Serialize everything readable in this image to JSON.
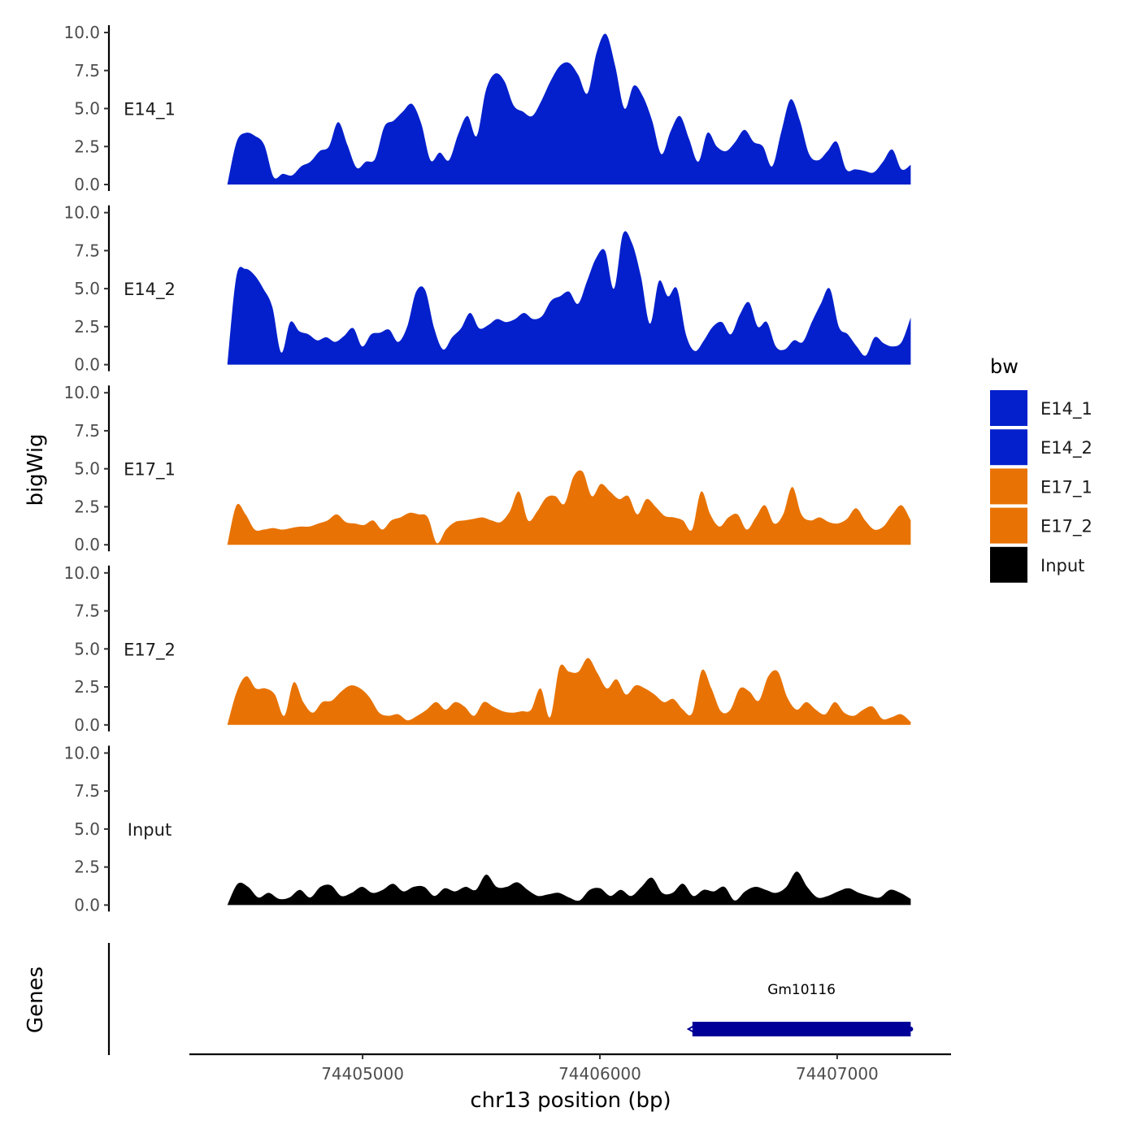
{
  "chart_data": {
    "type": "area",
    "chromosome_axis_label": "chr13 position (bp)",
    "ylabel": "bigWig",
    "genes_label": "Genes",
    "xlim": [
      74404270,
      74407480
    ],
    "x_start": 74404430,
    "x_end": 74407310,
    "x_ticks": [
      74405000,
      74406000,
      74407000
    ],
    "x_tick_labels": [
      "74405000",
      "74406000",
      "74407000"
    ],
    "ylim": [
      0,
      10
    ],
    "y_ticks": [
      0,
      2.5,
      5,
      7.5,
      10
    ],
    "y_tick_labels": [
      "0.0",
      "2.5",
      "5.0",
      "7.5",
      "10.0"
    ],
    "legend": {
      "title": "bw",
      "entries": [
        {
          "label": "E14_1",
          "color": "#0320CC"
        },
        {
          "label": "E14_2",
          "color": "#0320CC"
        },
        {
          "label": "E17_1",
          "color": "#E87304"
        },
        {
          "label": "E17_2",
          "color": "#E87304"
        },
        {
          "label": "Input",
          "color": "#000000"
        }
      ]
    },
    "tracks": [
      {
        "name": "E14_1",
        "color": "#0320CC",
        "values": [
          0.0,
          2.8,
          3.4,
          3.2,
          2.6,
          0.5,
          0.7,
          0.6,
          1.2,
          1.5,
          2.2,
          2.5,
          4.1,
          2.6,
          1.1,
          1.5,
          1.7,
          3.8,
          4.2,
          4.8,
          5.3,
          4.0,
          1.6,
          2.1,
          1.6,
          3.3,
          4.5,
          3.2,
          6.2,
          7.3,
          6.8,
          5.2,
          4.8,
          4.5,
          5.5,
          6.8,
          7.8,
          8.0,
          7.2,
          6.0,
          8.7,
          9.9,
          7.8,
          5.0,
          6.5,
          5.8,
          4.2,
          2.0,
          3.5,
          4.5,
          3.0,
          1.5,
          3.4,
          2.5,
          2.2,
          2.8,
          3.6,
          2.8,
          2.5,
          1.2,
          3.5,
          5.6,
          4.2,
          2.0,
          1.6,
          2.2,
          2.8,
          1.0,
          1.0,
          0.9,
          0.8,
          1.5,
          2.3,
          1.0,
          1.3
        ]
      },
      {
        "name": "E14_2",
        "color": "#0320CC",
        "values": [
          0.0,
          5.8,
          6.3,
          5.9,
          5.0,
          3.8,
          0.8,
          2.8,
          2.2,
          2.0,
          1.6,
          1.8,
          1.5,
          1.9,
          2.4,
          1.2,
          2.0,
          2.1,
          2.3,
          1.5,
          2.5,
          4.8,
          4.9,
          2.4,
          1.0,
          1.8,
          2.4,
          3.4,
          2.4,
          2.6,
          3.0,
          2.8,
          3.0,
          3.4,
          3.0,
          3.2,
          4.2,
          4.5,
          4.8,
          4.0,
          5.5,
          7.0,
          7.5,
          5.0,
          8.6,
          8.0,
          5.8,
          2.7,
          5.5,
          4.5,
          5.0,
          2.0,
          0.9,
          1.6,
          2.5,
          2.8,
          2.0,
          3.3,
          4.1,
          2.5,
          2.8,
          1.2,
          1.0,
          1.6,
          1.5,
          2.8,
          4.0,
          5.0,
          2.5,
          2.0,
          1.2,
          0.6,
          1.8,
          1.4,
          1.2,
          1.5,
          3.1
        ]
      },
      {
        "name": "E17_1",
        "color": "#E87304",
        "values": [
          0.0,
          2.6,
          2.0,
          1.0,
          1.0,
          1.1,
          1.0,
          1.1,
          1.2,
          1.2,
          1.4,
          1.6,
          2.0,
          1.5,
          1.4,
          1.3,
          1.6,
          1.0,
          1.6,
          1.8,
          2.1,
          2.0,
          1.8,
          0.1,
          1.0,
          1.5,
          1.6,
          1.7,
          1.8,
          1.6,
          1.5,
          2.2,
          3.5,
          1.6,
          2.2,
          3.1,
          3.2,
          2.7,
          4.5,
          4.8,
          3.2,
          4.0,
          3.5,
          3.0,
          3.2,
          2.0,
          3.0,
          2.5,
          1.9,
          1.8,
          1.6,
          1.0,
          3.5,
          2.0,
          1.2,
          1.8,
          2.0,
          1.0,
          1.8,
          2.6,
          1.4,
          2.0,
          3.8,
          2.0,
          1.6,
          1.8,
          1.5,
          1.4,
          1.7,
          2.4,
          1.6,
          1.0,
          1.2,
          2.0,
          2.6,
          1.6
        ]
      },
      {
        "name": "E17_2",
        "color": "#E87304",
        "values": [
          0.0,
          2.2,
          3.2,
          2.4,
          2.4,
          2.0,
          0.6,
          2.8,
          1.5,
          0.8,
          1.5,
          1.6,
          2.2,
          2.6,
          2.4,
          1.8,
          0.8,
          0.6,
          0.7,
          0.3,
          0.6,
          1.0,
          1.5,
          1.0,
          1.5,
          1.2,
          0.6,
          1.5,
          1.2,
          0.9,
          0.8,
          0.9,
          1.0,
          2.4,
          0.5,
          3.8,
          3.5,
          3.5,
          4.4,
          3.4,
          2.4,
          3.0,
          2.0,
          2.6,
          2.4,
          2.0,
          1.5,
          1.7,
          1.0,
          0.8,
          3.6,
          2.4,
          0.9,
          1.0,
          2.4,
          2.2,
          1.6,
          3.2,
          3.5,
          1.8,
          1.0,
          1.5,
          1.0,
          0.7,
          1.5,
          0.8,
          0.6,
          1.0,
          1.2,
          0.4,
          0.5,
          0.7,
          0.2
        ]
      },
      {
        "name": "Input",
        "color": "#000000",
        "values": [
          0.0,
          1.4,
          1.2,
          0.5,
          0.8,
          0.4,
          0.5,
          1.0,
          0.5,
          1.2,
          1.3,
          0.6,
          0.8,
          1.2,
          0.8,
          1.0,
          1.4,
          0.9,
          1.2,
          1.2,
          0.6,
          1.1,
          0.9,
          1.2,
          1.0,
          2.0,
          1.2,
          1.2,
          1.5,
          1.0,
          0.6,
          0.7,
          0.8,
          0.5,
          0.3,
          1.0,
          1.1,
          0.6,
          1.0,
          0.6,
          1.2,
          1.8,
          0.8,
          0.8,
          1.4,
          0.6,
          1.0,
          0.9,
          1.2,
          0.3,
          0.9,
          1.2,
          1.0,
          0.8,
          1.2,
          2.2,
          1.2,
          0.5,
          0.6,
          0.9,
          1.1,
          0.8,
          0.6,
          0.5,
          1.0,
          0.8,
          0.4
        ]
      }
    ],
    "genes": [
      {
        "name": "Gm10116",
        "start": 74406390,
        "end": 74407310,
        "strand": "-",
        "color": "#000099"
      }
    ]
  }
}
